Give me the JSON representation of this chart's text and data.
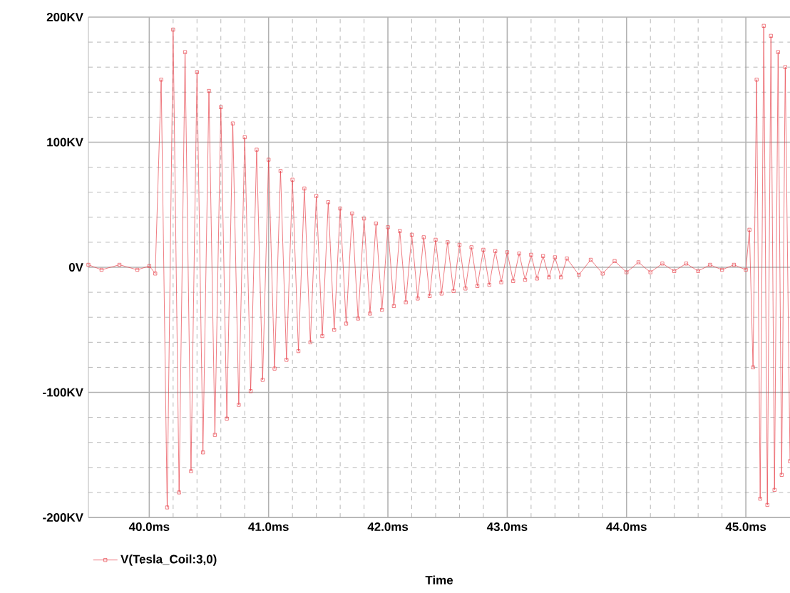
{
  "chart_data": {
    "type": "line",
    "xlabel": "Time",
    "x": [
      39.49,
      39.6,
      39.75,
      39.9,
      40.0,
      40.05,
      40.1,
      40.15,
      40.2,
      40.25,
      40.3,
      40.35,
      40.4,
      40.45,
      40.5,
      40.55,
      40.6,
      40.65,
      40.7,
      40.75,
      40.8,
      40.85,
      40.9,
      40.95,
      41.0,
      41.05,
      41.1,
      41.15,
      41.2,
      41.25,
      41.3,
      41.35,
      41.4,
      41.45,
      41.5,
      41.55,
      41.6,
      41.65,
      41.7,
      41.75,
      41.8,
      41.85,
      41.9,
      41.95,
      42.0,
      42.05,
      42.1,
      42.15,
      42.2,
      42.25,
      42.3,
      42.35,
      42.4,
      42.45,
      42.5,
      42.55,
      42.6,
      42.65,
      42.7,
      42.75,
      42.8,
      42.85,
      42.9,
      42.95,
      43.0,
      43.05,
      43.1,
      43.15,
      43.2,
      43.25,
      43.3,
      43.35,
      43.4,
      43.45,
      43.5,
      43.6,
      43.7,
      43.8,
      43.9,
      44.0,
      44.1,
      44.2,
      44.3,
      44.4,
      44.5,
      44.6,
      44.7,
      44.8,
      44.9,
      45.0,
      45.03,
      45.06,
      45.09,
      45.12,
      45.15,
      45.18,
      45.21,
      45.24,
      45.27,
      45.3,
      45.33,
      45.37
    ],
    "series": [
      {
        "name": "V(Tesla_Coil:3,0)",
        "color": "#e8434c",
        "values": [
          2,
          -2,
          2,
          -2,
          1,
          -5,
          150,
          -192,
          190,
          -180,
          172,
          -163,
          156,
          -148,
          141,
          -134,
          128,
          -121,
          115,
          -110,
          104,
          -99,
          94,
          -90,
          86,
          -81,
          77,
          -74,
          70,
          -67,
          63,
          -60,
          57,
          -55,
          52,
          -50,
          47,
          -45,
          43,
          -41,
          39,
          -37,
          35,
          -34,
          32,
          -31,
          29,
          -28,
          26,
          -25,
          24,
          -23,
          22,
          -21,
          20,
          -19,
          18,
          -17,
          16,
          -15,
          14,
          -14,
          13,
          -12,
          12,
          -11,
          11,
          -10,
          10,
          -9,
          9,
          -8,
          8,
          -8,
          7,
          -6,
          6,
          -5,
          5,
          -4,
          4,
          -4,
          3,
          -3,
          3,
          -3,
          2,
          -2,
          2,
          -2,
          30,
          -80,
          150,
          -185,
          193,
          -190,
          185,
          -178,
          172,
          -166,
          160,
          -155
        ]
      }
    ],
    "xlim": [
      39.49,
      45.37
    ],
    "ylim": [
      -200,
      200
    ],
    "xticks": [
      {
        "value": 40,
        "label": "40.0ms"
      },
      {
        "value": 41,
        "label": "41.0ms"
      },
      {
        "value": 42,
        "label": "42.0ms"
      },
      {
        "value": 43,
        "label": "43.0ms"
      },
      {
        "value": 44,
        "label": "44.0ms"
      },
      {
        "value": 45,
        "label": "45.0ms"
      }
    ],
    "yticks": [
      {
        "value": -200,
        "label": "-200KV"
      },
      {
        "value": -100,
        "label": "-100KV"
      },
      {
        "value": 0,
        "label": "0V"
      },
      {
        "value": 100,
        "label": "100KV"
      },
      {
        "value": 200,
        "label": "200KV"
      }
    ],
    "grid": true,
    "legend": "bottom left",
    "marker": "square",
    "line_style": "solid"
  }
}
